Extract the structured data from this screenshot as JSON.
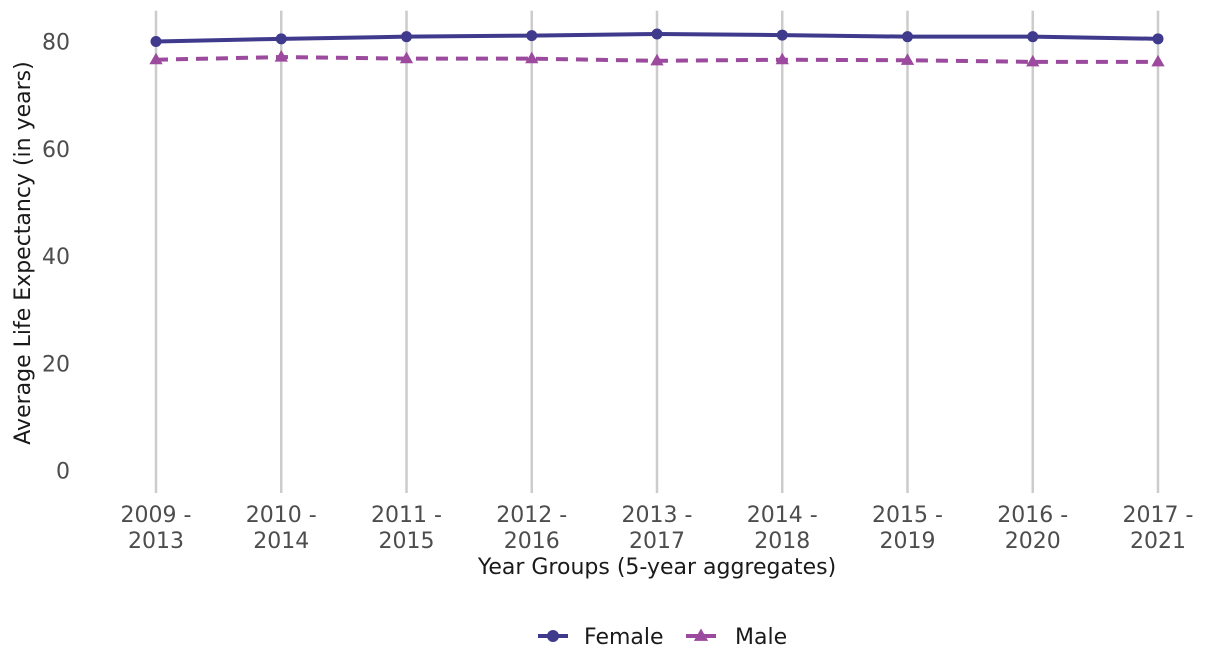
{
  "chart_data": {
    "type": "line",
    "title": "",
    "xlabel": "Year Groups (5-year aggregates)",
    "ylabel": "Average Life Expectancy (in years)",
    "ylim": [
      0,
      85
    ],
    "yticks": [
      0,
      20,
      40,
      60,
      80
    ],
    "categories": [
      [
        "2009 -",
        "2013"
      ],
      [
        "2010 -",
        "2014"
      ],
      [
        "2011 -",
        "2015"
      ],
      [
        "2012 -",
        "2016"
      ],
      [
        "2013 -",
        "2017"
      ],
      [
        "2014 -",
        "2018"
      ],
      [
        "2015 -",
        "2019"
      ],
      [
        "2016 -",
        "2020"
      ],
      [
        "2017 -",
        "2021"
      ]
    ],
    "grid": "vertical major lines only",
    "legend_position": "bottom",
    "series": [
      {
        "name": "Female",
        "color": "#3f3a8c",
        "marker": "circle",
        "line_style": "solid",
        "values": [
          80.0,
          80.5,
          80.9,
          81.1,
          81.4,
          81.2,
          80.9,
          80.9,
          80.5
        ]
      },
      {
        "name": "Male",
        "color": "#9b4a9e",
        "marker": "triangle",
        "line_style": "dashed",
        "values": [
          76.6,
          77.1,
          76.8,
          76.8,
          76.4,
          76.6,
          76.5,
          76.2,
          76.2
        ]
      }
    ]
  }
}
